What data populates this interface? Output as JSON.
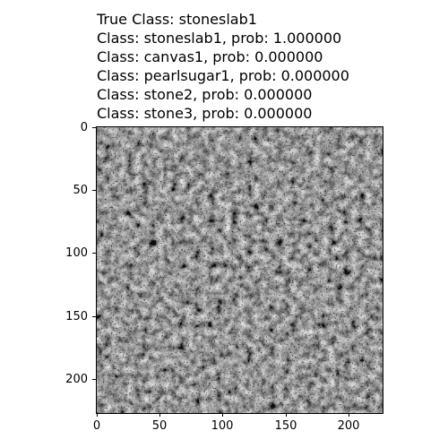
{
  "header": {
    "true_class": "True Class: stoneslab1",
    "predictions": [
      "Class: stoneslab1, prob: 1.000000",
      "Class: canvas1, prob: 0.000000",
      "Class: pearlsugar1, prob: 0.000000",
      "Class: stone2, prob: 0.000000",
      "Class: stone3, prob: 0.000000"
    ]
  },
  "chart_data": {
    "type": "heatmap",
    "description_colormap": "gray",
    "xlim": [
      0,
      227
    ],
    "ylim": [
      227,
      0
    ],
    "x_ticks": [
      0,
      50,
      100,
      150,
      200
    ],
    "y_ticks": [
      0,
      50,
      100,
      150,
      200
    ],
    "x_tick_labels": [
      "0",
      "50",
      "100",
      "150",
      "200"
    ],
    "y_tick_labels": [
      "0",
      "50",
      "100",
      "150",
      "200"
    ],
    "grid": false
  }
}
